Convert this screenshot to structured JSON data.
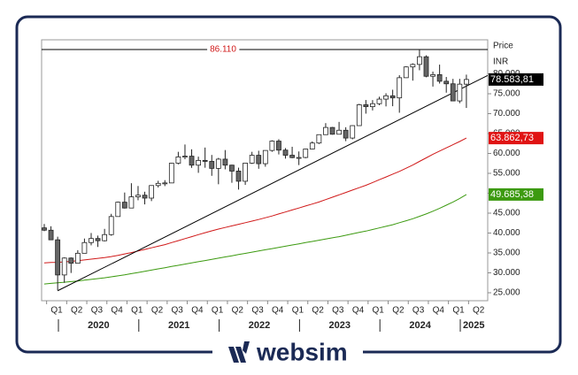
{
  "chart_data": {
    "type": "candlestick",
    "price_label": "Price",
    "currency_label": "INR",
    "peak": {
      "value": 86110,
      "label": "86.110"
    },
    "ylim": [
      23000,
      88556
    ],
    "yticks": [
      {
        "value": 25000,
        "label": "25.000"
      },
      {
        "value": 30000,
        "label": "30.000"
      },
      {
        "value": 35000,
        "label": "35.000"
      },
      {
        "value": 40000,
        "label": "40.000"
      },
      {
        "value": 45000,
        "label": "45.000"
      },
      {
        "value": 50000,
        "label": "50.000"
      },
      {
        "value": 55000,
        "label": "55.000"
      },
      {
        "value": 60000,
        "label": "60.000"
      },
      {
        "value": 65000,
        "label": "65.000"
      },
      {
        "value": 70000,
        "label": "70.000"
      },
      {
        "value": 75000,
        "label": "75.000"
      },
      {
        "value": 80000,
        "label": "80.000"
      }
    ],
    "quarters": [
      "Q1",
      "Q2",
      "Q3",
      "Q4",
      "Q1",
      "Q2",
      "Q3",
      "Q4",
      "Q1",
      "Q2",
      "Q3",
      "Q4",
      "Q1",
      "Q2",
      "Q3",
      "Q4",
      "Q1",
      "Q2",
      "Q3",
      "Q4",
      "Q1",
      "Q2"
    ],
    "years": [
      "2020",
      "2021",
      "2022",
      "2023",
      "2024",
      "2025"
    ],
    "ohlc": {
      "open": [
        41300,
        40720,
        38300,
        29470,
        33720,
        32420,
        34920,
        37610,
        38630,
        38070,
        39610,
        44150,
        47750,
        46290,
        49100,
        49510,
        48780,
        51940,
        52480,
        52590,
        57550,
        59130,
        59310,
        57060,
        58250,
        58010,
        56250,
        58570,
        57060,
        55570,
        53020,
        57570,
        59540,
        57430,
        60750,
        63100,
        60840,
        59550,
        58960,
        58990,
        61110,
        62620,
        64720,
        66530,
        64830,
        65830,
        63870,
        66990,
        72240,
        71750,
        72500,
        73650,
        74480,
        73960,
        79030,
        81740,
        82370,
        84300,
        79390,
        79800,
        78140,
        77500,
        73200,
        77410
      ],
      "high": [
        42270,
        41710,
        39080,
        33890,
        33890,
        35700,
        38620,
        40010,
        39360,
        41050,
        44830,
        47900,
        50180,
        52520,
        51820,
        50380,
        52010,
        53130,
        53290,
        57630,
        60410,
        62250,
        61040,
        59200,
        61480,
        59620,
        58890,
        60850,
        57180,
        56430,
        57620,
        60410,
        60680,
        60790,
        63300,
        63580,
        61340,
        61680,
        60500,
        61210,
        63040,
        64770,
        67620,
        66660,
        67930,
        66590,
        67070,
        72480,
        73430,
        73410,
        74250,
        75120,
        76010,
        79670,
        81910,
        82640,
        86110,
        84650,
        80570,
        82320,
        79220,
        78740,
        78740,
        79800
      ],
      "low": [
        40480,
        38220,
        25640,
        27500,
        29970,
        32350,
        34930,
        36910,
        36500,
        37900,
        39330,
        44120,
        46160,
        46430,
        48240,
        47200,
        48030,
        51450,
        51800,
        52560,
        57260,
        58550,
        56380,
        55130,
        56410,
        54380,
        52260,
        56010,
        52630,
        50920,
        52100,
        57370,
        56150,
        56680,
        60430,
        59750,
        58700,
        58800,
        57080,
        58790,
        61000,
        62360,
        64840,
        64720,
        64820,
        63090,
        63550,
        67150,
        70000,
        70810,
        72140,
        71820,
        71870,
        70230,
        78970,
        78300,
        80900,
        79140,
        76800,
        77560,
        75270,
        73140,
        72630,
        71430
      ],
      "close": [
        40720,
        38300,
        29470,
        33720,
        32420,
        34920,
        37610,
        38630,
        38070,
        39610,
        44150,
        47750,
        46290,
        49100,
        49510,
        48780,
        51940,
        52480,
        52590,
        57550,
        59130,
        59310,
        57060,
        58250,
        58010,
        56250,
        58570,
        57060,
        55570,
        53020,
        57570,
        59540,
        57430,
        60750,
        63100,
        60840,
        59550,
        58960,
        58990,
        61110,
        62620,
        64720,
        66530,
        64830,
        65830,
        63870,
        66990,
        72240,
        71750,
        72500,
        73650,
        74480,
        73960,
        79030,
        81740,
        82370,
        84300,
        79390,
        79800,
        78140,
        77500,
        73200,
        77410,
        78583.81
      ]
    },
    "lines": [
      {
        "color": "#d01818",
        "values": [
          32500,
          32600,
          32650,
          32750,
          32900,
          33050,
          33250,
          33450,
          33650,
          33850,
          34100,
          34400,
          34750,
          35100,
          35500,
          35900,
          36300,
          36700,
          37100,
          37600,
          38100,
          38600,
          39100,
          39600,
          40100,
          40550,
          41000,
          41400,
          41800,
          42200,
          42600,
          43000,
          43400,
          43850,
          44300,
          44800,
          45300,
          45800,
          46300,
          46800,
          47300,
          47800,
          48400,
          49000,
          49600,
          50200,
          50800,
          51400,
          52000,
          52700,
          53400,
          54100,
          54800,
          55500,
          56300,
          57100,
          58000,
          58900,
          59800,
          60600,
          61400,
          62200,
          63000,
          63862.73
        ]
      },
      {
        "color": "#3c9a10",
        "values": [
          27200,
          27350,
          27500,
          27650,
          27800,
          27950,
          28150,
          28350,
          28550,
          28750,
          29000,
          29250,
          29500,
          29800,
          30100,
          30400,
          30700,
          31000,
          31300,
          31600,
          31900,
          32200,
          32500,
          32800,
          33100,
          33400,
          33700,
          34000,
          34300,
          34600,
          34900,
          35200,
          35500,
          35800,
          36100,
          36400,
          36700,
          37000,
          37300,
          37600,
          37900,
          38200,
          38500,
          38800,
          39100,
          39450,
          39800,
          40150,
          40500,
          40900,
          41300,
          41700,
          42100,
          42600,
          43100,
          43600,
          44200,
          44800,
          45500,
          46200,
          47000,
          47800,
          48700,
          49685.38
        ]
      }
    ],
    "trendline": [
      25500,
      79600
    ],
    "price_boxes": [
      {
        "value": 78583.81,
        "label": "78.583,81",
        "color": "#000000"
      },
      {
        "value": 63862.73,
        "label": "63.862,73",
        "color": "#e01414"
      },
      {
        "value": 49685.38,
        "label": "49.685,38",
        "color": "#3c9a10"
      }
    ]
  },
  "brand": "websim"
}
